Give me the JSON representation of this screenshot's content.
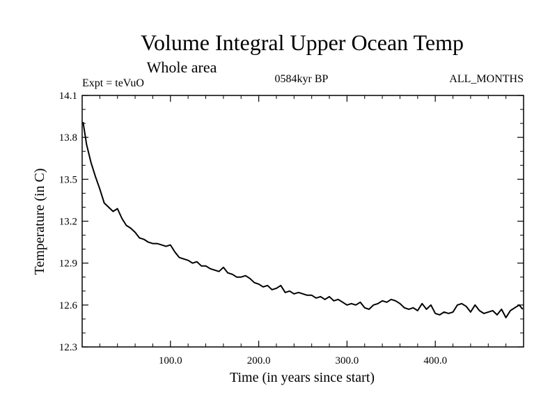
{
  "chart_data": {
    "type": "line",
    "title": "Volume Integral Upper Ocean Temp",
    "subtitle": "Whole area",
    "annotations": {
      "left": "Expt = teVuO",
      "center": "0584kyr BP",
      "right": "ALL_MONTHS"
    },
    "xlabel": "Time (in years since start)",
    "ylabel": "Temperature (in C)",
    "xlim": [
      0,
      500
    ],
    "ylim": [
      12.3,
      14.1
    ],
    "x_ticks": [
      100,
      200,
      300,
      400
    ],
    "x_tick_labels": [
      "100.0",
      "200.0",
      "300.0",
      "400.0"
    ],
    "y_ticks": [
      12.3,
      12.6,
      12.9,
      13.2,
      13.5,
      13.8,
      14.1
    ],
    "y_tick_labels": [
      "12.3",
      "12.6",
      "12.9",
      "13.2",
      "13.5",
      "13.8",
      "14.1"
    ],
    "grid": false,
    "line_color": "#000000",
    "series": [
      {
        "x": [
          1,
          5,
          10,
          15,
          20,
          25,
          30,
          35,
          40,
          45,
          50,
          55,
          60,
          65,
          70,
          75,
          80,
          85,
          90,
          95,
          100,
          105,
          110,
          115,
          120,
          125,
          130,
          135,
          140,
          145,
          150,
          155,
          160,
          165,
          170,
          175,
          180,
          185,
          190,
          195,
          200,
          205,
          210,
          215,
          220,
          225,
          230,
          235,
          240,
          245,
          250,
          255,
          260,
          265,
          270,
          275,
          280,
          285,
          290,
          295,
          300,
          305,
          310,
          315,
          320,
          325,
          330,
          335,
          340,
          345,
          350,
          355,
          360,
          365,
          370,
          375,
          380,
          385,
          390,
          395,
          400,
          405,
          410,
          415,
          420,
          425,
          430,
          435,
          440,
          445,
          450,
          455,
          460,
          465,
          470,
          475,
          480,
          485,
          490,
          495,
          499
        ],
        "values": [
          13.91,
          13.75,
          13.62,
          13.52,
          13.43,
          13.33,
          13.3,
          13.27,
          13.29,
          13.22,
          13.17,
          13.15,
          13.12,
          13.08,
          13.07,
          13.05,
          13.04,
          13.04,
          13.03,
          13.02,
          13.03,
          12.98,
          12.94,
          12.93,
          12.92,
          12.9,
          12.91,
          12.88,
          12.88,
          12.86,
          12.85,
          12.84,
          12.87,
          12.83,
          12.82,
          12.8,
          12.8,
          12.81,
          12.79,
          12.76,
          12.75,
          12.73,
          12.74,
          12.71,
          12.72,
          12.74,
          12.69,
          12.7,
          12.68,
          12.69,
          12.68,
          12.67,
          12.67,
          12.65,
          12.66,
          12.64,
          12.66,
          12.63,
          12.64,
          12.62,
          12.6,
          12.61,
          12.6,
          12.62,
          12.58,
          12.57,
          12.6,
          12.61,
          12.63,
          12.62,
          12.64,
          12.63,
          12.61,
          12.58,
          12.57,
          12.58,
          12.56,
          12.61,
          12.57,
          12.6,
          12.54,
          12.53,
          12.55,
          12.54,
          12.55,
          12.6,
          12.61,
          12.59,
          12.55,
          12.6,
          12.56,
          12.54,
          12.55,
          12.56,
          12.53,
          12.57,
          12.51,
          12.56,
          12.58,
          12.6,
          12.57
        ]
      }
    ]
  }
}
